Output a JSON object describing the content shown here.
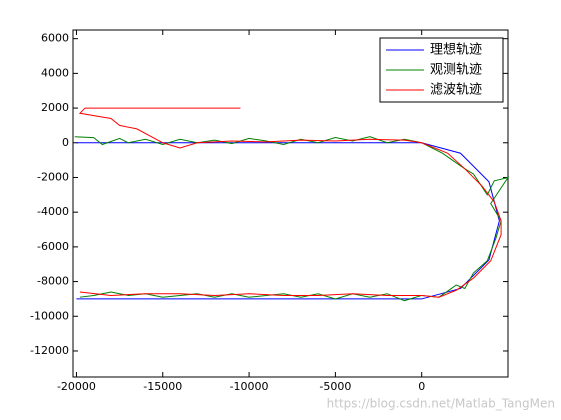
{
  "chart_data": {
    "type": "line",
    "xlim": [
      -20200,
      5000
    ],
    "ylim": [
      -13500,
      6500
    ],
    "xticks": [
      -20000,
      -15000,
      -10000,
      -5000,
      0
    ],
    "yticks": [
      -12000,
      -10000,
      -8000,
      -6000,
      -4000,
      -2000,
      0,
      2000,
      4000,
      6000
    ],
    "legend": "upper right",
    "series": [
      {
        "name": "理想轨迹",
        "color": "#0000ff",
        "x": [
          -20000,
          0,
          2250,
          3897,
          4500,
          3897,
          2250,
          0,
          -20000
        ],
        "y": [
          0,
          0,
          -602,
          -2250,
          -4500,
          -6750,
          -8397,
          -9000,
          -9000
        ]
      },
      {
        "name": "观测轨迹",
        "color": "#008000",
        "x": [
          -20100,
          -19000,
          -18500,
          -17500,
          -17000,
          -16000,
          -15000,
          -14000,
          -13000,
          -12000,
          -11000,
          -10000,
          -9000,
          -8000,
          -7000,
          -6000,
          -5000,
          -4000,
          -3000,
          -2000,
          -1000,
          0,
          1200,
          2500,
          3000,
          3800,
          4200,
          5000,
          4000,
          4600,
          4300,
          3800,
          3000,
          2500,
          2000,
          1000,
          0,
          -1000,
          -2000,
          -3000,
          -4000,
          -5000,
          -6000,
          -7000,
          -8000,
          -9000,
          -10000,
          -11000,
          -12000,
          -13000,
          -14000,
          -15000,
          -16000,
          -17000,
          -18000,
          -19000,
          -19800
        ],
        "y": [
          350,
          300,
          -100,
          250,
          0,
          200,
          -100,
          200,
          0,
          150,
          -50,
          250,
          100,
          -100,
          200,
          0,
          300,
          100,
          350,
          0,
          200,
          0,
          -600,
          -1500,
          -1800,
          -3000,
          -2200,
          -2000,
          -3500,
          -4500,
          -5500,
          -6800,
          -7500,
          -8400,
          -8200,
          -8900,
          -8800,
          -9100,
          -8700,
          -8900,
          -8700,
          -9000,
          -8700,
          -8900,
          -8700,
          -8800,
          -8900,
          -8700,
          -8900,
          -8700,
          -8800,
          -8900,
          -8700,
          -8800,
          -8600,
          -8800,
          -8900
        ]
      },
      {
        "name": "滤波轨迹",
        "color": "#ff0000",
        "x": [
          -10500,
          -19500,
          -19800,
          -18000,
          -17500,
          -16500,
          -15000,
          -14000,
          -13000,
          -11000,
          -9000,
          -7000,
          -5000,
          -3000,
          -1000,
          0,
          1500,
          2500,
          3500,
          4200,
          4600,
          4600,
          4000,
          3000,
          2000,
          1000,
          0,
          -2000,
          -4000,
          -6000,
          -8000,
          -10000,
          -12000,
          -14000,
          -16000,
          -18000,
          -19800
        ],
        "y": [
          2000,
          2000,
          1700,
          1400,
          1000,
          800,
          0,
          -300,
          0,
          100,
          50,
          150,
          100,
          200,
          150,
          0,
          -600,
          -1500,
          -2500,
          -3400,
          -4500,
          -5300,
          -6800,
          -7800,
          -8500,
          -8900,
          -8800,
          -8800,
          -8700,
          -8800,
          -8800,
          -8700,
          -8800,
          -8700,
          -8700,
          -8800,
          -8600
        ]
      }
    ]
  },
  "watermark": "https://blog.csdn.net/Matlab_TangMen"
}
